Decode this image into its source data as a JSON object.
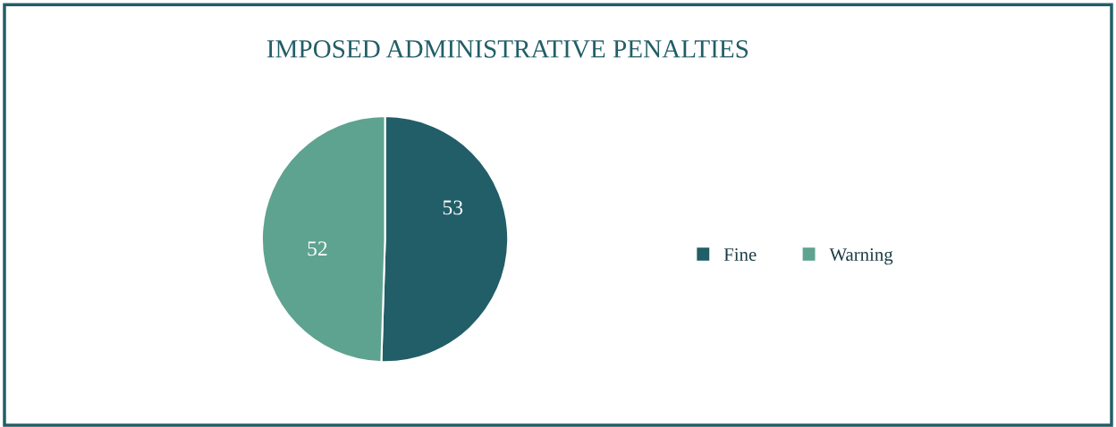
{
  "chart_data": {
    "type": "pie",
    "title": "IMPOSED ADMINISTRATIVE PENALTIES",
    "categories": [
      "Fine",
      "Warning"
    ],
    "values": [
      53,
      52
    ],
    "colors": [
      "#225e68",
      "#5ea38f"
    ],
    "data_labels": true,
    "legend": "right"
  }
}
